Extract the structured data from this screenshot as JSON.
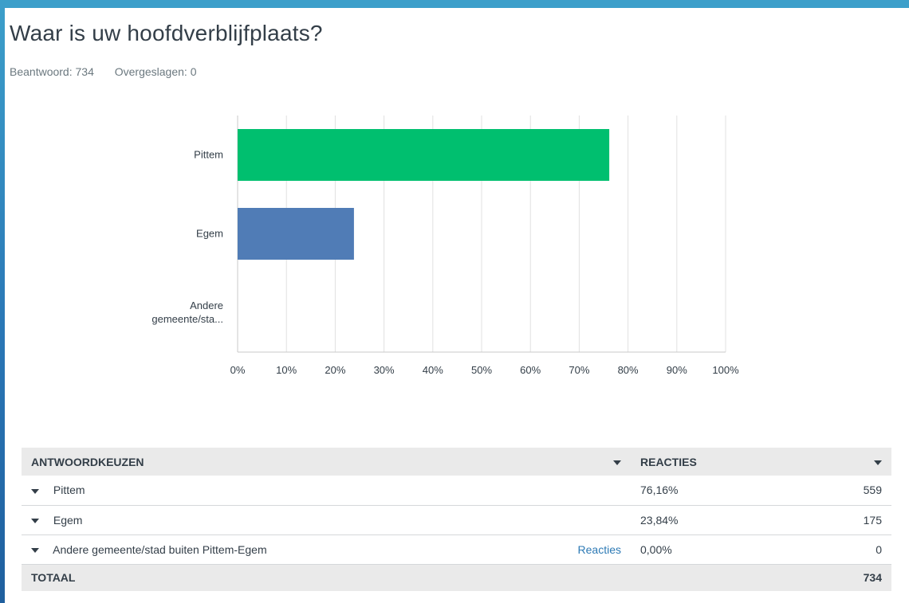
{
  "question": {
    "title": "Waar is uw hoofdverblijfplaats?",
    "answered": "Beantwoord: 734",
    "skipped": "Overgeslagen: 0"
  },
  "colors": {
    "bar1": "#00bf6f",
    "bar2": "#507cb6",
    "grid": "#e0e0e0",
    "frame": "#3c9fca"
  },
  "chart_data": {
    "type": "bar",
    "orientation": "horizontal",
    "categories": [
      "Pittem",
      "Egem",
      "Andere gemeente/sta..."
    ],
    "values": [
      76.16,
      23.84,
      0.0
    ],
    "xlim": [
      0,
      100
    ],
    "xticks": [
      "0%",
      "10%",
      "20%",
      "30%",
      "40%",
      "50%",
      "60%",
      "70%",
      "80%",
      "90%",
      "100%"
    ],
    "grid": true
  },
  "table": {
    "col_choice": "ANTWOORDKEUZEN",
    "col_responses": "REACTIES",
    "rows": [
      {
        "label": "Pittem",
        "link": "",
        "pct": "76,16%",
        "count": "559"
      },
      {
        "label": "Egem",
        "link": "",
        "pct": "23,84%",
        "count": "175"
      },
      {
        "label": "Andere gemeente/stad buiten Pittem-Egem",
        "link": "Reacties",
        "pct": "0,00%",
        "count": "0"
      }
    ],
    "total_label": "TOTAAL",
    "total_count": "734"
  }
}
